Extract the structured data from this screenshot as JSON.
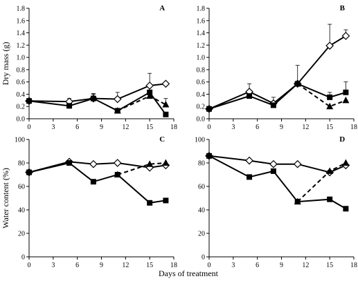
{
  "figure": {
    "ylabel_top": "Dry mass (g)",
    "ylabel_bottom": "Water content (%)",
    "xlabel": "Days of treatment"
  },
  "chart_data": [
    {
      "type": "line",
      "panel": "A",
      "xlim": [
        0,
        18
      ],
      "ylim": [
        0,
        1.8
      ],
      "x_ticks": [
        "0",
        "3",
        "6",
        "9",
        "12",
        "15",
        "18"
      ],
      "y_ticks": [
        "0.0",
        "0.2",
        "0.4",
        "0.6",
        "0.8",
        "1.0",
        "1.2",
        "1.4",
        "1.6",
        "1.8"
      ],
      "series": [
        {
          "marker": "diamond-open",
          "line": "solid",
          "x": [
            0,
            5,
            8,
            11,
            15,
            17
          ],
          "y": [
            0.29,
            0.28,
            0.33,
            0.32,
            0.54,
            0.57
          ],
          "err": [
            0,
            0.05,
            0.08,
            0.11,
            0.2,
            0
          ]
        },
        {
          "marker": "square",
          "line": "solid",
          "x": [
            0,
            5,
            8,
            11,
            15,
            17
          ],
          "y": [
            0.29,
            0.21,
            0.33,
            0.13,
            0.43,
            0.07
          ],
          "err": [
            0,
            0,
            0.07,
            0.04,
            0.1,
            0
          ]
        },
        {
          "marker": "triangle",
          "line": "dashed",
          "x": [
            11,
            15,
            17
          ],
          "y": [
            0.13,
            0.37,
            0.23
          ],
          "err": [
            0,
            0,
            0.1
          ]
        }
      ]
    },
    {
      "type": "line",
      "panel": "B",
      "xlim": [
        0,
        18
      ],
      "ylim": [
        0,
        1.8
      ],
      "x_ticks": [
        "0",
        "3",
        "6",
        "9",
        "12",
        "15",
        "18"
      ],
      "y_ticks": [
        "0.0",
        "0.2",
        "0.4",
        "0.6",
        "0.8",
        "1.0",
        "1.2",
        "1.4",
        "1.6",
        "1.8"
      ],
      "series": [
        {
          "marker": "diamond-open",
          "line": "solid",
          "x": [
            0,
            5,
            8,
            11,
            15,
            17
          ],
          "y": [
            0.16,
            0.44,
            0.25,
            0.57,
            1.19,
            1.35
          ],
          "err": [
            0.03,
            0.13,
            0.1,
            0.3,
            0.35,
            0.1
          ]
        },
        {
          "marker": "square",
          "line": "solid",
          "x": [
            0,
            5,
            8,
            11,
            15,
            17
          ],
          "y": [
            0.16,
            0.37,
            0.22,
            0.57,
            0.35,
            0.43
          ],
          "err": [
            0,
            0.04,
            0.04,
            0,
            0.08,
            0.17
          ]
        },
        {
          "marker": "triangle",
          "line": "dashed",
          "x": [
            11,
            15,
            17
          ],
          "y": [
            0.57,
            0.2,
            0.3
          ],
          "err": [
            0,
            0,
            0
          ]
        }
      ]
    },
    {
      "type": "line",
      "panel": "C",
      "xlim": [
        0,
        18
      ],
      "ylim": [
        0,
        100
      ],
      "x_ticks": [
        "0",
        "3",
        "6",
        "9",
        "12",
        "15",
        "18"
      ],
      "y_ticks": [
        "0",
        "20",
        "40",
        "60",
        "80",
        "100"
      ],
      "series": [
        {
          "marker": "diamond-open",
          "line": "solid",
          "x": [
            0,
            5,
            8,
            11,
            15,
            17
          ],
          "y": [
            72,
            81,
            79,
            80,
            76,
            78
          ],
          "err": [
            0,
            0,
            0,
            0,
            0,
            0
          ]
        },
        {
          "marker": "square",
          "line": "solid",
          "x": [
            0,
            5,
            8,
            11,
            15,
            17
          ],
          "y": [
            72,
            80,
            64,
            70,
            46,
            48
          ],
          "err": [
            0,
            0,
            0,
            0,
            0,
            0
          ]
        },
        {
          "marker": "triangle",
          "line": "dashed",
          "x": [
            11,
            15,
            17
          ],
          "y": [
            70,
            79,
            80
          ],
          "err": [
            0,
            0,
            0
          ]
        }
      ]
    },
    {
      "type": "line",
      "panel": "D",
      "xlim": [
        0,
        18
      ],
      "ylim": [
        0,
        100
      ],
      "x_ticks": [
        "0",
        "3",
        "6",
        "9",
        "12",
        "15",
        "18"
      ],
      "y_ticks": [
        "0",
        "20",
        "40",
        "60",
        "80",
        "100"
      ],
      "series": [
        {
          "marker": "diamond-open",
          "line": "solid",
          "x": [
            0,
            5,
            8,
            11,
            15,
            17
          ],
          "y": [
            86,
            82,
            79,
            79,
            72,
            78
          ],
          "err": [
            0,
            0,
            0,
            0,
            0,
            0
          ]
        },
        {
          "marker": "square",
          "line": "solid",
          "x": [
            0,
            5,
            8,
            11,
            15,
            17
          ],
          "y": [
            86,
            68,
            73,
            47,
            49,
            41
          ],
          "err": [
            0,
            0,
            0,
            0,
            0,
            0
          ]
        },
        {
          "marker": "triangle",
          "line": "dashed",
          "x": [
            11,
            15,
            17
          ],
          "y": [
            47,
            73,
            80
          ],
          "err": [
            0,
            0,
            0
          ]
        }
      ]
    }
  ]
}
